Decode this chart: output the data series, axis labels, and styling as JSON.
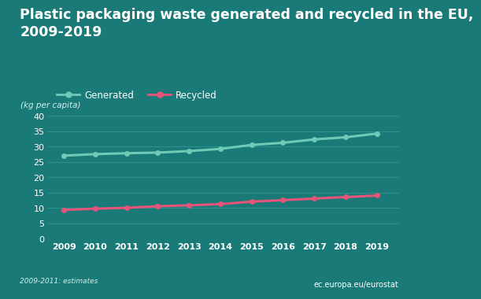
{
  "title": "Plastic packaging waste generated and recycled in the EU,\n2009-2019",
  "ylabel": "(kg per capita)",
  "years": [
    2009,
    2010,
    2011,
    2012,
    2013,
    2014,
    2015,
    2016,
    2017,
    2018,
    2019
  ],
  "generated": [
    27.0,
    27.5,
    27.8,
    28.0,
    28.5,
    29.2,
    30.5,
    31.2,
    32.3,
    33.0,
    34.2
  ],
  "recycled": [
    9.3,
    9.7,
    10.0,
    10.5,
    10.8,
    11.2,
    12.0,
    12.5,
    13.0,
    13.5,
    14.0
  ],
  "generated_color": "#6ec9b5",
  "recycled_color": "#e8537a",
  "background_color": "#1a7a78",
  "grid_color": "#2a9090",
  "text_color": "#ffffff",
  "subtitle_color": "#d4eeeb",
  "ylim": [
    0,
    42
  ],
  "yticks": [
    0,
    5,
    10,
    15,
    20,
    25,
    30,
    35,
    40
  ],
  "note": "2009-2011: estimates",
  "watermark": "ec.europa.eu/eurostat",
  "legend_generated": "Generated",
  "legend_recycled": "Recycled"
}
